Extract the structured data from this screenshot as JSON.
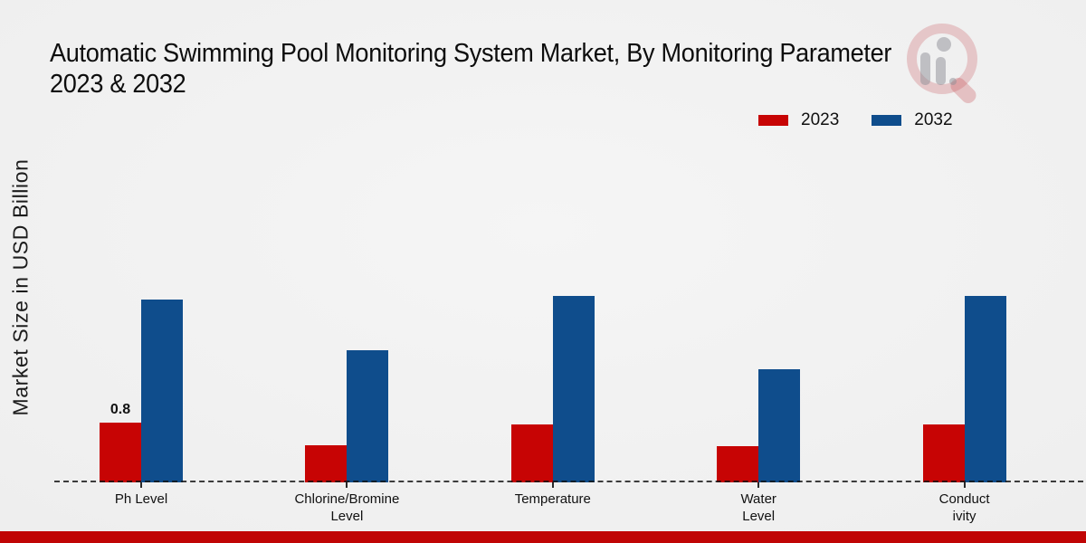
{
  "title": {
    "line1": "Automatic Swimming Pool Monitoring System Market, By Monitoring Parameter",
    "line2": "2023 & 2032"
  },
  "ylabel": "Market Size in USD Billion",
  "legend": {
    "items": [
      {
        "label": "2023",
        "color": "#c70404"
      },
      {
        "label": "2032",
        "color": "#0f4d8c"
      }
    ]
  },
  "chart_data": {
    "type": "bar",
    "title": "Automatic Swimming Pool Monitoring System Market, By Monitoring Parameter 2023 & 2032",
    "xlabel": "",
    "ylabel": "Market Size in USD Billion",
    "categories": [
      "Ph Level",
      "Chlorine/Bromine Level",
      "Temperature",
      "Water Level",
      "Conductivity"
    ],
    "category_label_lines": [
      [
        "Ph Level"
      ],
      [
        "Chlorine/Bromine",
        "Level"
      ],
      [
        "Temperature"
      ],
      [
        "Water",
        "Level"
      ],
      [
        "Conduct",
        "ivity"
      ]
    ],
    "series": [
      {
        "name": "2023",
        "color": "#c70404",
        "values": [
          0.8,
          0.5,
          0.78,
          0.48,
          0.78
        ],
        "value_labels": [
          "0.8",
          "",
          "",
          "",
          ""
        ]
      },
      {
        "name": "2032",
        "color": "#0f4d8c",
        "values": [
          2.45,
          1.77,
          2.5,
          1.52,
          2.5
        ],
        "value_labels": [
          "",
          "",
          "",
          "",
          ""
        ]
      }
    ],
    "ylim": [
      0,
      2.9
    ],
    "grid": false,
    "axis_style": "dashed-baseline",
    "legend_position": "top-right",
    "bar_value_label_shown": "only first 2023 bar"
  },
  "footer": {
    "band_color": "#c00505"
  }
}
